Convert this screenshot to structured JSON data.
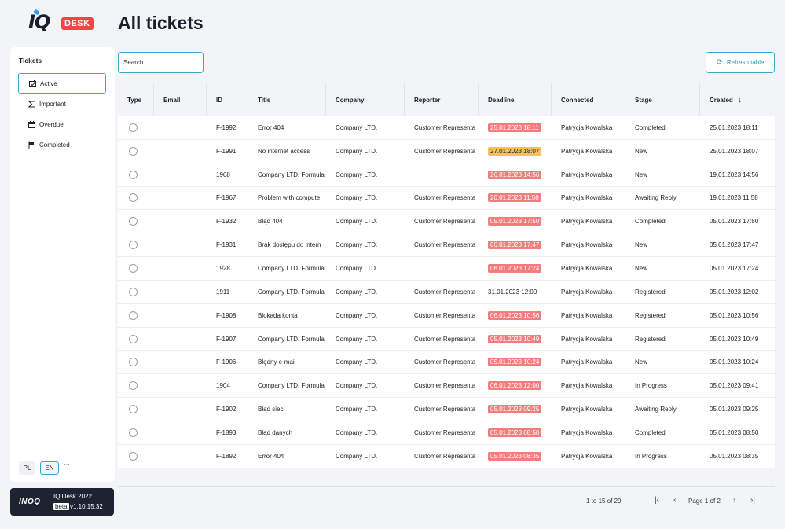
{
  "brand": {
    "logo_text": "IQ",
    "logo_badge": "DESK",
    "company": "INOQ",
    "version_line": "IQ Desk 2022",
    "beta": "beta",
    "version": "v1.10.15.32"
  },
  "page": {
    "title": "All tickets"
  },
  "sidebar": {
    "heading": "Tickets",
    "items": [
      {
        "label": "Active",
        "icon": "calendar-check-icon"
      },
      {
        "label": "Important",
        "icon": "sigma-icon"
      },
      {
        "label": "Overdue",
        "icon": "calendar-x-icon"
      },
      {
        "label": "Completed",
        "icon": "flag-icon"
      }
    ],
    "languages": [
      "PL",
      "EN"
    ],
    "more": "···"
  },
  "toolbar": {
    "search_placeholder": "Search",
    "refresh_label": "Refresh table"
  },
  "table": {
    "columns": [
      "Type",
      "Email",
      "ID",
      "Title",
      "Company",
      "Reporter",
      "Deadline",
      "Connected",
      "Stage",
      "Created"
    ],
    "rows": [
      {
        "email": "",
        "id": "F-1992",
        "title": "Error 404",
        "company": "Company LTD.",
        "reporter": "Customer Representa",
        "deadline": "25.01.2023 18:11",
        "deadline_status": "red",
        "connected": "Patrycja Kowalska",
        "stage": "Completed",
        "created": "25.01.2023 18:11"
      },
      {
        "email": "",
        "id": "F-1991",
        "title": "No internet access",
        "company": "Company LTD.",
        "reporter": "Customer Representa",
        "deadline": "27.01.2023 18:07",
        "deadline_status": "yellow",
        "connected": "Patrycja Kowalska",
        "stage": "New",
        "created": "25.01.2023 18:07"
      },
      {
        "email": "",
        "id": "1968",
        "title": "Company LTD. Formula",
        "company": "Company LTD.",
        "reporter": "",
        "deadline": "26.01.2023 14:56",
        "deadline_status": "red",
        "connected": "Patrycja Kowalska",
        "stage": "New",
        "created": "19.01.2023 14:56"
      },
      {
        "email": "",
        "id": "F-1967",
        "title": "Problem with compute",
        "company": "Company LTD.",
        "reporter": "Customer Representa",
        "deadline": "20.01.2023 11:58",
        "deadline_status": "red",
        "connected": "Patrycja Kowalska",
        "stage": "Awaiting Reply",
        "created": "19.01.2023 11:58"
      },
      {
        "email": "",
        "id": "F-1932",
        "title": "Błąd 404",
        "company": "Company LTD.",
        "reporter": "Customer Representa",
        "deadline": "05.01.2023 17:50",
        "deadline_status": "red",
        "connected": "Patrycja Kowalska",
        "stage": "Completed",
        "created": "05.01.2023 17:50"
      },
      {
        "email": "",
        "id": "F-1931",
        "title": "Brak dostępu do intern",
        "company": "Company LTD.",
        "reporter": "Customer Representa",
        "deadline": "06.01.2023 17:47",
        "deadline_status": "red",
        "connected": "Patrycja Kowalska",
        "stage": "New",
        "created": "05.01.2023 17:47"
      },
      {
        "email": "",
        "id": "1928",
        "title": "Company LTD. Formula",
        "company": "Company LTD.",
        "reporter": "",
        "deadline": "06.01.2023 17:24",
        "deadline_status": "red",
        "connected": "Patrycja Kowalska",
        "stage": "New",
        "created": "05.01.2023 17:24"
      },
      {
        "email": "",
        "id": "1911",
        "title": "Company LTD. Formula",
        "company": "Company LTD.",
        "reporter": "Customer Representa",
        "deadline": "31.01.2023 12:00",
        "deadline_status": "none",
        "connected": "Patrycja Kowalska",
        "stage": "Registered",
        "created": "05.01.2023 12:02"
      },
      {
        "email": "",
        "id": "F-1908",
        "title": "Blokada konta",
        "company": "Company LTD.",
        "reporter": "Customer Representa",
        "deadline": "06.01.2023 10:56",
        "deadline_status": "red",
        "connected": "Patrycja Kowalska",
        "stage": "Registered",
        "created": "05.01.2023 10:56"
      },
      {
        "email": "",
        "id": "F-1907",
        "title": "Company LTD. Formula",
        "company": "Company LTD.",
        "reporter": "Customer Representa",
        "deadline": "05.01.2023 10:49",
        "deadline_status": "red",
        "connected": "Patrycja Kowalska",
        "stage": "Registered",
        "created": "05.01.2023 10:49"
      },
      {
        "email": "",
        "id": "F-1906",
        "title": "Błędny e-mail",
        "company": "Company LTD.",
        "reporter": "Customer Representa",
        "deadline": "05.01.2023 10:24",
        "deadline_status": "red",
        "connected": "Patrycja Kowalska",
        "stage": "New",
        "created": "05.01.2023 10:24"
      },
      {
        "email": "",
        "id": "1904",
        "title": "Company LTD. Formula",
        "company": "Company LTD.",
        "reporter": "Customer Representa",
        "deadline": "06.01.2023 12:00",
        "deadline_status": "red",
        "connected": "Patrycja Kowalska",
        "stage": "In Progress",
        "created": "05.01.2023 09:41"
      },
      {
        "email": "",
        "id": "F-1902",
        "title": "Błąd sieci",
        "company": "Company LTD.",
        "reporter": "Customer Representa",
        "deadline": "05.01.2023 09:25",
        "deadline_status": "red",
        "connected": "Patrycja Kowalska",
        "stage": "Awaiting Reply",
        "created": "05.01.2023 09:25"
      },
      {
        "email": "",
        "id": "F-1893",
        "title": "Błąd danych",
        "company": "Company LTD.",
        "reporter": "Customer Representa",
        "deadline": "05.01.2023 08:50",
        "deadline_status": "red",
        "connected": "Patrycja Kowalska",
        "stage": "Completed",
        "created": "05.01.2023 08:50"
      },
      {
        "email": "",
        "id": "F-1892",
        "title": "Error 404",
        "company": "Company LTD.",
        "reporter": "Customer Representa",
        "deadline": "05.01.2023 08:35",
        "deadline_status": "red",
        "connected": "Patrycja Kowalska",
        "stage": "In Progress",
        "created": "05.01.2023 08:35"
      }
    ]
  },
  "pagination": {
    "range": "1 to 15 of 29",
    "page_info": "Page 1 of 2"
  },
  "colors": {
    "accent": "#3aa6c9",
    "overdue": "#f47c7c",
    "due_soon": "#f7c15a"
  }
}
